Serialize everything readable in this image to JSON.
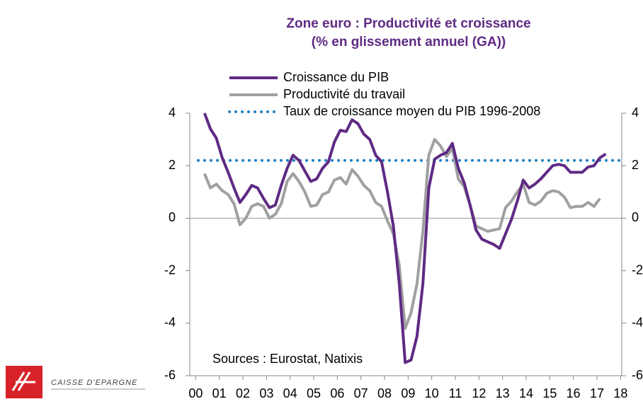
{
  "chart_data": {
    "type": "line",
    "title": "Zone euro : Productivité et  croissance",
    "subtitle": "(% en  glissement annuel (GA))",
    "annotation": "Sources : Eurostat, Natixis",
    "logo_text": "CAISSE D'EPARGNE",
    "x": [
      0.375,
      0.625,
      0.875,
      1.125,
      1.375,
      1.625,
      1.875,
      2.125,
      2.375,
      2.625,
      2.875,
      3.125,
      3.375,
      3.625,
      3.875,
      4.125,
      4.375,
      4.625,
      4.875,
      5.125,
      5.375,
      5.625,
      5.875,
      6.125,
      6.375,
      6.625,
      6.875,
      7.125,
      7.375,
      7.625,
      7.875,
      8.125,
      8.375,
      8.625,
      8.875,
      9.125,
      9.375,
      9.625,
      9.875,
      10.125,
      10.375,
      10.625,
      10.875,
      11.125,
      11.375,
      11.625,
      11.875,
      12.125,
      12.375,
      12.625,
      12.875,
      13.125,
      13.375,
      13.625,
      13.875,
      14.125,
      14.375,
      14.625,
      14.875,
      15.125,
      15.375,
      15.625,
      15.875,
      16.125,
      16.375,
      16.625,
      16.875,
      17.125,
      17.375
    ],
    "series": [
      {
        "name": "Croissance du PIB",
        "color": "#5f2a84",
        "values": [
          4.0,
          3.4,
          3.05,
          2.3,
          1.75,
          1.15,
          0.6,
          0.9,
          1.25,
          1.15,
          0.75,
          0.4,
          0.5,
          1.25,
          1.9,
          2.4,
          2.2,
          1.8,
          1.4,
          1.5,
          1.9,
          2.15,
          2.9,
          3.35,
          3.3,
          3.75,
          3.6,
          3.2,
          3.0,
          2.4,
          2.15,
          1.0,
          -0.3,
          -2.5,
          -5.5,
          -5.4,
          -4.5,
          -2.5,
          1.15,
          2.25,
          2.4,
          2.5,
          2.85,
          1.9,
          1.35,
          0.5,
          -0.45,
          -0.8,
          -0.9,
          -1.0,
          -1.15,
          -0.6,
          -0.05,
          0.65,
          1.45,
          1.15,
          1.3,
          1.5,
          1.75,
          2.0,
          2.05,
          2.0,
          1.75,
          1.75,
          1.75,
          1.95,
          2.0,
          2.3,
          2.45
        ]
      },
      {
        "name": "Productivité du travail",
        "color": "#a0a0a0",
        "values": [
          1.7,
          1.15,
          1.3,
          1.05,
          0.9,
          0.55,
          -0.25,
          0.0,
          0.45,
          0.55,
          0.45,
          0.0,
          0.15,
          0.55,
          1.4,
          1.7,
          1.4,
          1.0,
          0.45,
          0.5,
          0.9,
          1.0,
          1.45,
          1.55,
          1.3,
          1.85,
          1.6,
          1.25,
          1.05,
          0.6,
          0.45,
          -0.1,
          -0.6,
          -1.8,
          -4.2,
          -3.6,
          -2.5,
          -0.5,
          2.4,
          3.0,
          2.75,
          2.35,
          2.65,
          1.5,
          1.2,
          0.5,
          -0.3,
          -0.4,
          -0.5,
          -0.45,
          -0.4,
          0.4,
          0.65,
          1.0,
          1.3,
          0.6,
          0.5,
          0.65,
          0.95,
          1.05,
          1.0,
          0.8,
          0.4,
          0.45,
          0.45,
          0.6,
          0.45,
          0.75,
          null
        ]
      }
    ],
    "reference_line": {
      "name": "Taux de croissance moyen du PIB 1996-2008",
      "value": 2.2,
      "color": "#1f7fc4"
    },
    "xlim": [
      -0.25,
      18.05
    ],
    "xticks": [
      {
        "value": 0,
        "label": "00"
      },
      {
        "value": 1,
        "label": "01"
      },
      {
        "value": 2,
        "label": "02"
      },
      {
        "value": 3,
        "label": "03"
      },
      {
        "value": 4,
        "label": "04"
      },
      {
        "value": 5,
        "label": "05"
      },
      {
        "value": 6,
        "label": "06"
      },
      {
        "value": 7,
        "label": "07"
      },
      {
        "value": 8,
        "label": "08"
      },
      {
        "value": 9,
        "label": "09"
      },
      {
        "value": 10,
        "label": "10"
      },
      {
        "value": 11,
        "label": "11"
      },
      {
        "value": 12,
        "label": "12"
      },
      {
        "value": 13,
        "label": "13"
      },
      {
        "value": 14,
        "label": "14"
      },
      {
        "value": 15,
        "label": "15"
      },
      {
        "value": 16,
        "label": "16"
      },
      {
        "value": 17,
        "label": "17"
      },
      {
        "value": 18,
        "label": "18"
      }
    ],
    "ylim": [
      -6,
      4
    ],
    "yticks": [
      -6,
      -4,
      -2,
      0,
      2,
      4
    ],
    "zero_line": true
  }
}
